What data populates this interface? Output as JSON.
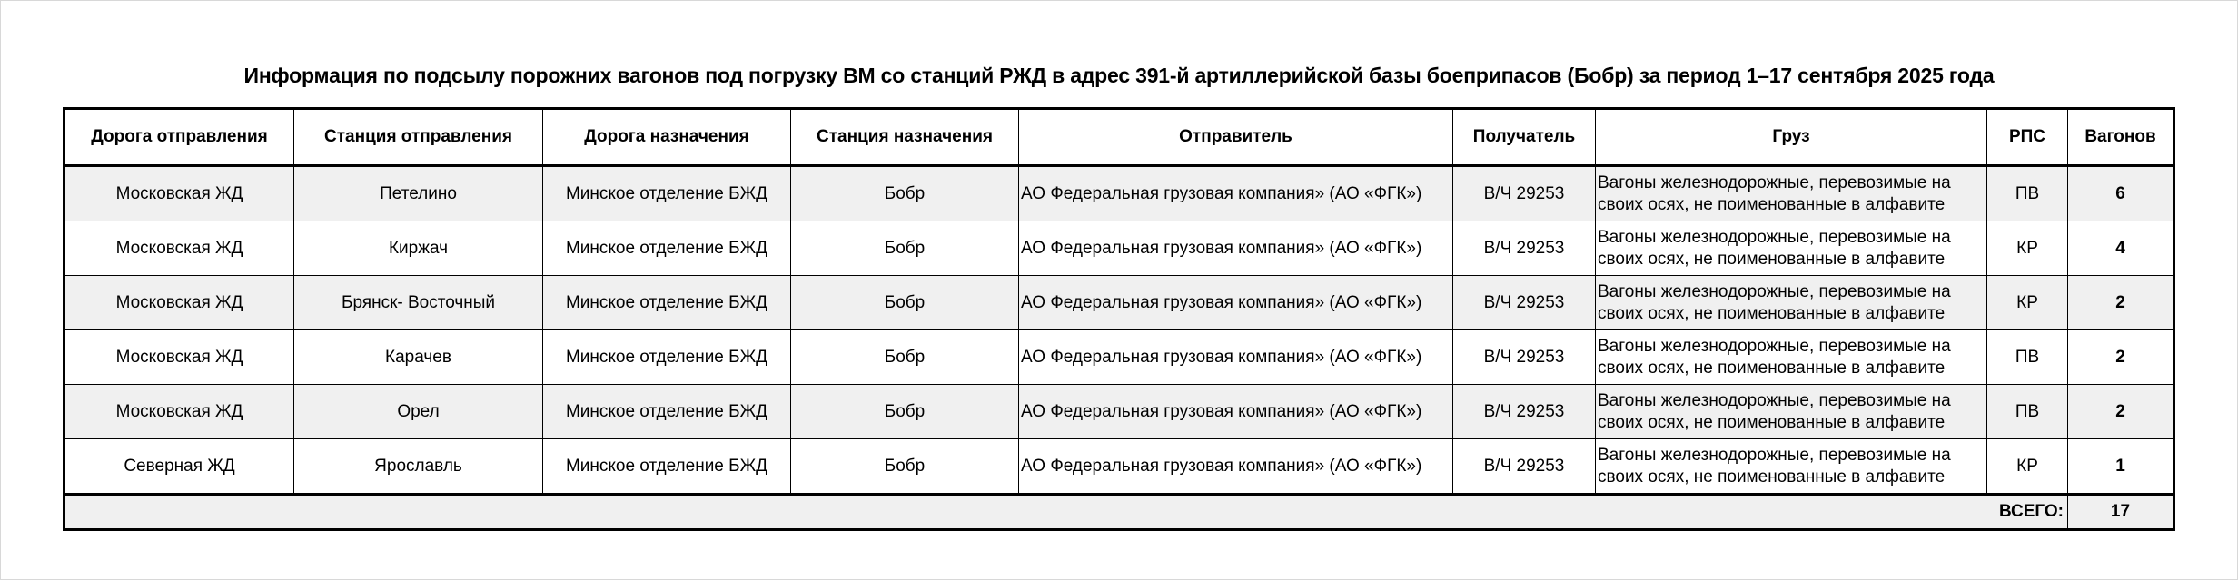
{
  "title": "Информация по подсылу порожних вагонов под погрузку ВМ со станций РЖД в адрес 391-й артиллерийской базы боеприпасов (Бобр) за период 1–17 сентября 2025 года",
  "columns": [
    "Дорога отправления",
    "Станция отправления",
    "Дорога назначения",
    "Станция назначения",
    "Отправитель",
    "Получатель",
    "Груз",
    "РПС",
    "Вагонов"
  ],
  "rows": [
    [
      "Московская ЖД",
      "Петелино",
      "Минское отделение БЖД",
      "Бобр",
      "АО Федеральная грузовая компания» (АО «ФГК»)",
      "В/Ч 29253",
      "Вагоны железнодорожные, перевозимые на своих осях, не поименованные в алфавите",
      "ПВ",
      "6"
    ],
    [
      "Московская ЖД",
      "Киржач",
      "Минское отделение БЖД",
      "Бобр",
      "АО Федеральная грузовая компания» (АО «ФГК»)",
      "В/Ч 29253",
      "Вагоны железнодорожные, перевозимые на своих осях, не поименованные в алфавите",
      "КР",
      "4"
    ],
    [
      "Московская ЖД",
      "Брянск- Восточный",
      "Минское отделение БЖД",
      "Бобр",
      "АО Федеральная грузовая компания» (АО «ФГК»)",
      "В/Ч 29253",
      "Вагоны железнодорожные, перевозимые на своих осях, не поименованные в алфавите",
      "КР",
      "2"
    ],
    [
      "Московская ЖД",
      "Карачев",
      "Минское отделение БЖД",
      "Бобр",
      "АО Федеральная грузовая компания» (АО «ФГК»)",
      "В/Ч 29253",
      "Вагоны железнодорожные, перевозимые на своих осях, не поименованные в алфавите",
      "ПВ",
      "2"
    ],
    [
      "Московская ЖД",
      "Орел",
      "Минское отделение БЖД",
      "Бобр",
      "АО Федеральная грузовая компания» (АО «ФГК»)",
      "В/Ч 29253",
      "Вагоны железнодорожные, перевозимые на своих осях, не поименованные в алфавите",
      "ПВ",
      "2"
    ],
    [
      "Северная ЖД",
      "Ярославль",
      "Минское отделение БЖД",
      "Бобр",
      "АО Федеральная грузовая компания» (АО «ФГК»)",
      "В/Ч 29253",
      "Вагоны железнодорожные, перевозимые на своих осях, не поименованные в алфавите",
      "КР",
      "1"
    ]
  ],
  "total": {
    "label": "ВСЕГО:",
    "value": "17"
  },
  "colors": {
    "row_alt": "#f0f0f0",
    "border": "#000000"
  }
}
